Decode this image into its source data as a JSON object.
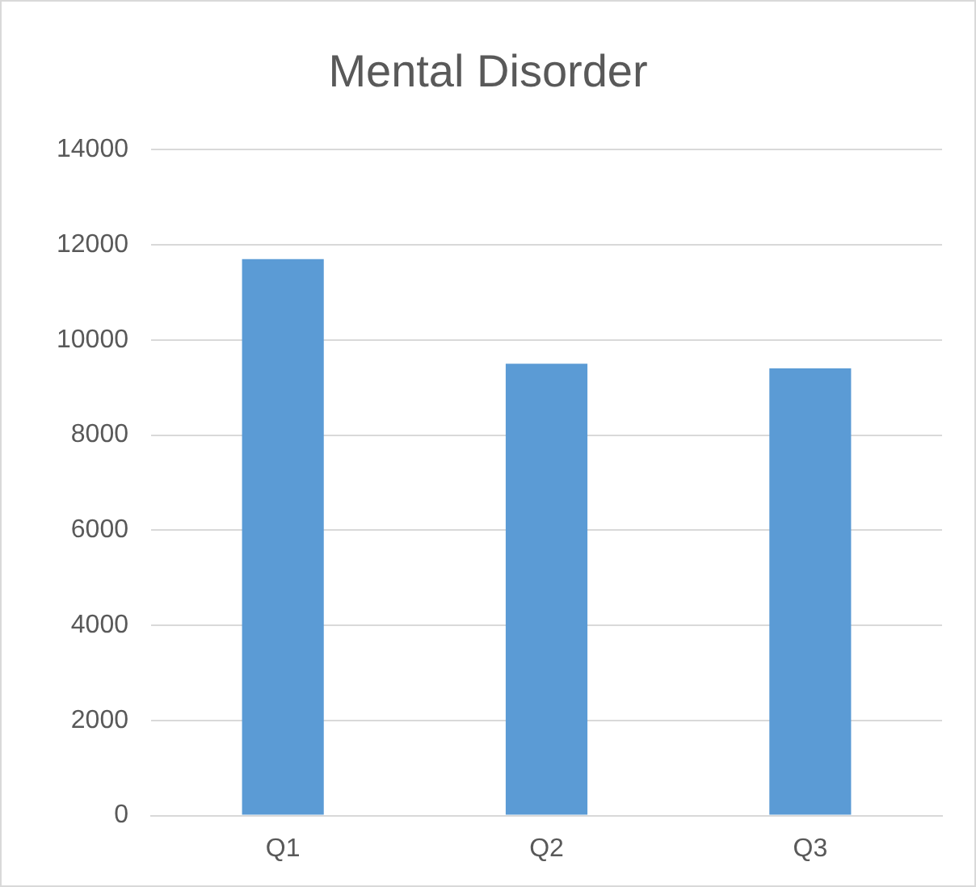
{
  "chart_data": {
    "type": "bar",
    "title": "Mental Disorder",
    "categories": [
      "Q1",
      "Q2",
      "Q3"
    ],
    "values": [
      11700,
      9500,
      9400
    ],
    "color": "#5b9bd5",
    "ylim": [
      0,
      14000
    ],
    "yticks": [
      0,
      2000,
      4000,
      6000,
      8000,
      10000,
      12000,
      14000
    ],
    "grid": "y"
  }
}
